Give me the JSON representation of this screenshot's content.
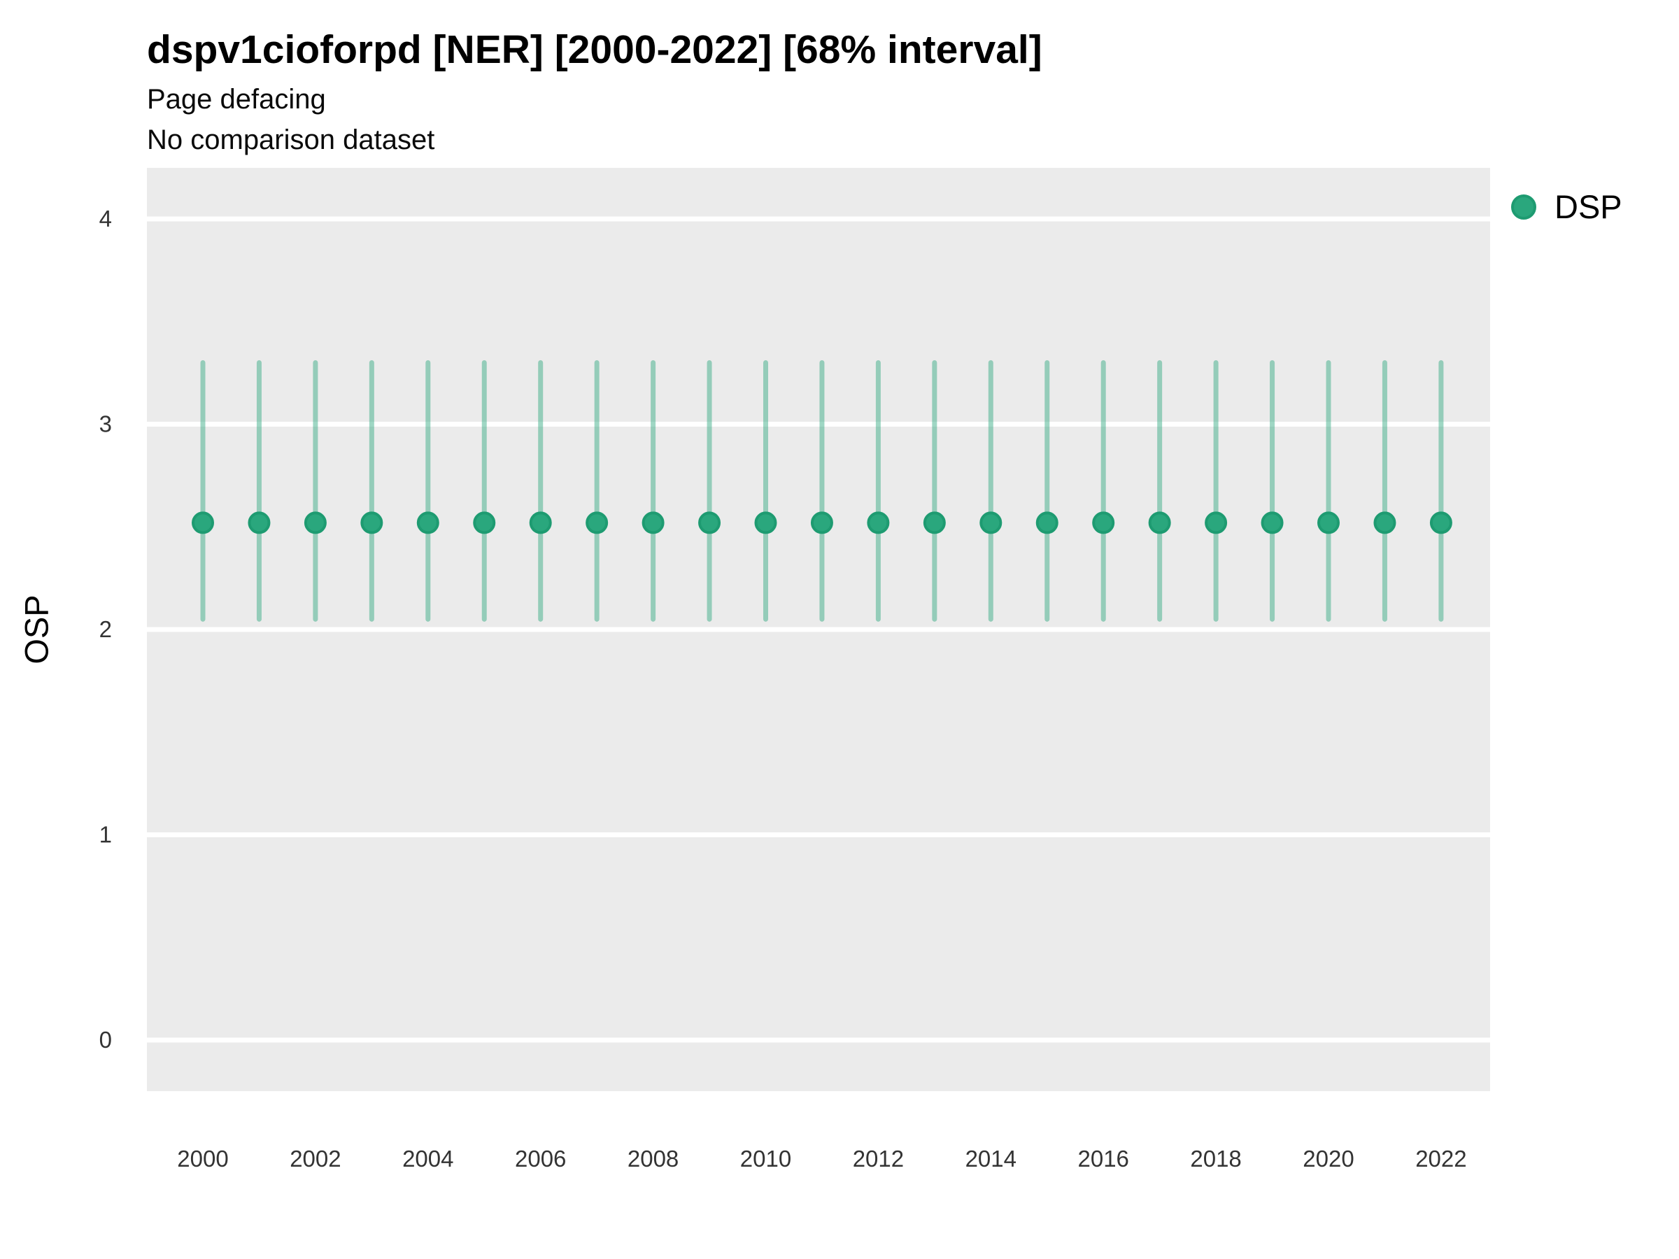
{
  "header": {
    "title": "dspv1cioforpd [NER] [2000-2022] [68% interval]",
    "subtitle": "Page defacing",
    "note": "No comparison dataset"
  },
  "chart_data": {
    "type": "scatter",
    "title": "dspv1cioforpd [NER] [2000-2022] [68% interval]",
    "subtitle": "Page defacing",
    "note": "No comparison dataset",
    "interval_level": "68%",
    "xlabel": "",
    "ylabel": "OSP",
    "ylim": [
      -0.25,
      4.25
    ],
    "xlim": [
      1999,
      2023
    ],
    "y_ticks": [
      0,
      1,
      2,
      3,
      4
    ],
    "x_ticks": [
      2000,
      2002,
      2004,
      2006,
      2008,
      2010,
      2012,
      2014,
      2016,
      2018,
      2020,
      2022
    ],
    "grid": "horizontal-major-only",
    "legend_position": "top-right",
    "x": [
      2000,
      2001,
      2002,
      2003,
      2004,
      2005,
      2006,
      2007,
      2008,
      2009,
      2010,
      2011,
      2012,
      2013,
      2014,
      2015,
      2016,
      2017,
      2018,
      2019,
      2020,
      2021,
      2022
    ],
    "series": [
      {
        "name": "DSP",
        "mean": [
          2.52,
          2.52,
          2.52,
          2.52,
          2.52,
          2.52,
          2.52,
          2.52,
          2.52,
          2.52,
          2.52,
          2.52,
          2.52,
          2.52,
          2.52,
          2.52,
          2.52,
          2.52,
          2.52,
          2.52,
          2.52,
          2.52,
          2.52
        ],
        "lower_68": [
          2.05,
          2.05,
          2.05,
          2.05,
          2.05,
          2.05,
          2.05,
          2.05,
          2.05,
          2.05,
          2.05,
          2.05,
          2.05,
          2.05,
          2.05,
          2.05,
          2.05,
          2.05,
          2.05,
          2.05,
          2.05,
          2.05,
          2.05
        ],
        "upper_68": [
          3.3,
          3.3,
          3.3,
          3.3,
          3.3,
          3.3,
          3.3,
          3.3,
          3.3,
          3.3,
          3.3,
          3.3,
          3.3,
          3.3,
          3.3,
          3.3,
          3.3,
          3.3,
          3.3,
          3.3,
          3.3,
          3.3,
          3.3
        ]
      }
    ],
    "colors": {
      "point": "#2aa77d",
      "point_stroke": "#1e9b71",
      "interval": "rgba(42, 167, 125, 0.45)",
      "panel": "#ebebeb",
      "grid": "#ffffff",
      "tick_text": "#333333"
    }
  }
}
